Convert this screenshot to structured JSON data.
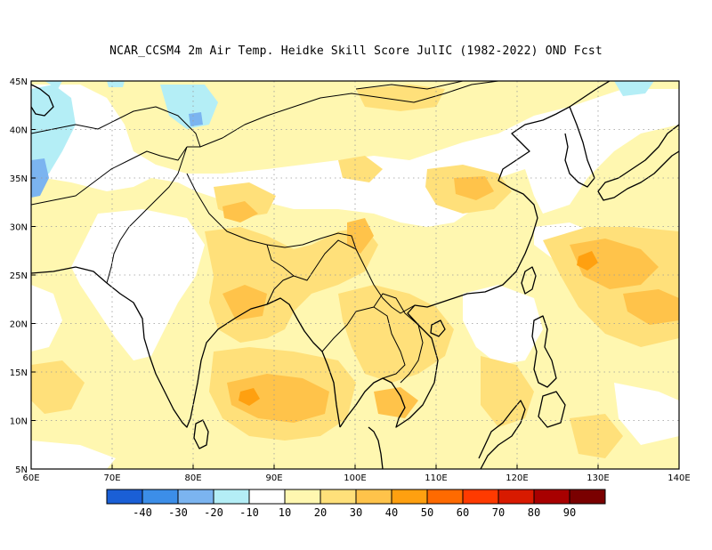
{
  "title": "NCAR_CCSM4  2m Air Temp. Heidke Skill Score JulIC (1982-2022) OND Fcst",
  "map": {
    "lon_range": [
      60,
      140
    ],
    "lat_range": [
      5,
      45
    ],
    "lon_ticks": [
      "60E",
      "70E",
      "80E",
      "90E",
      "100E",
      "110E",
      "120E",
      "130E",
      "140E"
    ],
    "lat_ticks": [
      "5N",
      "10N",
      "15N",
      "20N",
      "25N",
      "30N",
      "35N",
      "40N",
      "45N"
    ]
  },
  "colorbar": {
    "colors": [
      "#1a5fd6",
      "#3c8ee8",
      "#7bb4f0",
      "#b4eef6",
      "#ffffff",
      "#fff7b0",
      "#ffe07a",
      "#ffc34a",
      "#ffa010",
      "#ff6a00",
      "#ff3a00",
      "#d81a00",
      "#a80000",
      "#7a0000"
    ],
    "labels": [
      "-40",
      "-30",
      "-20",
      "-10",
      "10",
      "20",
      "30",
      "40",
      "50",
      "60",
      "70",
      "80",
      "90"
    ]
  },
  "chart_data": {
    "type": "heatmap",
    "title": "NCAR_CCSM4  2m Air Temp. Heidke Skill Score JulIC (1982-2022) OND Fcst",
    "x_range_deg_east": [
      60,
      140
    ],
    "y_range_deg_north": [
      5,
      45
    ],
    "color_levels": [
      -40,
      -30,
      -20,
      -10,
      10,
      20,
      30,
      40,
      50,
      60,
      70,
      80,
      90
    ],
    "regions": [
      {
        "area": "Bay of Bengal / Indian Ocean 10-20N, 85-100E",
        "level": "40"
      },
      {
        "area": "South China Sea 10-20N, 105-115E",
        "level": "30"
      },
      {
        "area": "Western Pacific east of Taiwan 22-28N, 125-140E",
        "level": "40"
      },
      {
        "area": "Western Pacific near 26N 128E",
        "level": "50"
      },
      {
        "area": "Central China 30-35N, 108-115E",
        "level": "30"
      },
      {
        "area": "Eastern Himalaya 28-30N, 90-100E",
        "level": "30"
      },
      {
        "area": "Tibet 32-38N",
        "level": "10"
      },
      {
        "area": "Northwest India / Pakistan",
        "level": "10"
      },
      {
        "area": "Afghanistan west edge 35N 60E",
        "level": "-20"
      },
      {
        "area": "Kazakhstan 40-45N 62-70E",
        "level": "-10"
      },
      {
        "area": "Northeast Asia 40-45N 130-140E",
        "level": "-10"
      }
    ]
  }
}
